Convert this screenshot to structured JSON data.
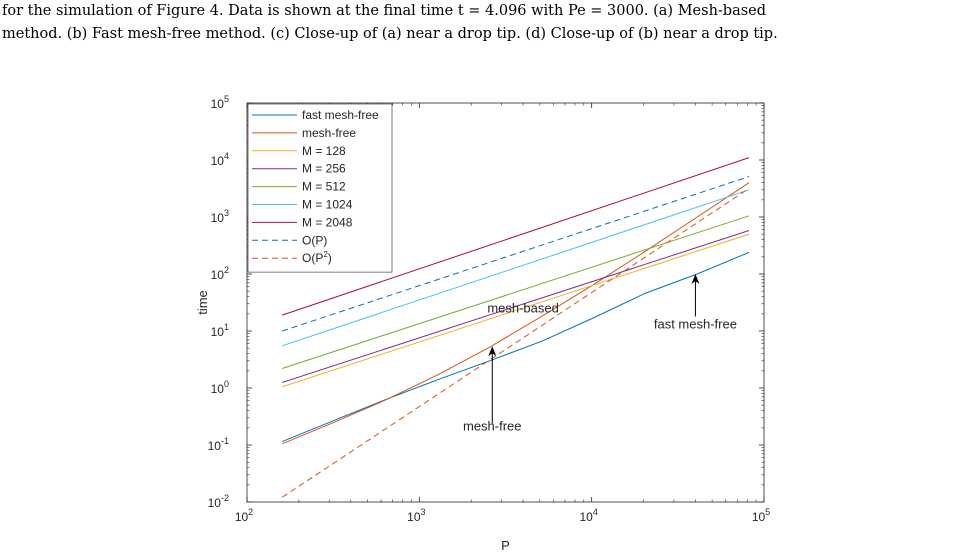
{
  "caption": {
    "line1": "for the simulation of Figure 4. Data is shown at the final time t = 4.096 with Pe = 3000. (a) Mesh-based",
    "line2": "method. (b) Fast mesh-free method. (c) Close-up of (a) near a drop tip. (d) Close-up of (b) near a drop tip."
  },
  "chart_data": {
    "type": "line",
    "title": "",
    "xlabel": "P",
    "ylabel": "time",
    "xscale": "log",
    "yscale": "log",
    "xlim": [
      100,
      100000
    ],
    "ylim": [
      0.01,
      100000
    ],
    "grid": false,
    "legend_position": "top-left",
    "xticks": [
      {
        "value": 100,
        "base": "10",
        "exp": "2"
      },
      {
        "value": 1000,
        "base": "10",
        "exp": "3"
      },
      {
        "value": 10000,
        "base": "10",
        "exp": "4"
      },
      {
        "value": 100000,
        "base": "10",
        "exp": "5"
      }
    ],
    "yticks": [
      {
        "value": 0.01,
        "base": "10",
        "exp": "-2"
      },
      {
        "value": 0.1,
        "base": "10",
        "exp": "-1"
      },
      {
        "value": 1,
        "base": "10",
        "exp": "0"
      },
      {
        "value": 10,
        "base": "10",
        "exp": "1"
      },
      {
        "value": 100,
        "base": "10",
        "exp": "2"
      },
      {
        "value": 1000,
        "base": "10",
        "exp": "3"
      },
      {
        "value": 10000,
        "base": "10",
        "exp": "4"
      },
      {
        "value": 100000,
        "base": "10",
        "exp": "5"
      }
    ],
    "series": [
      {
        "name": "fast mesh-free",
        "color": "#0072BD",
        "dash": "solid",
        "x": [
          160,
          320,
          640,
          1280,
          2560,
          5120,
          10240,
          20480,
          40960,
          81920
        ],
        "y": [
          0.115,
          0.27,
          0.63,
          1.4,
          3.0,
          6.6,
          17,
          46,
          100,
          240
        ]
      },
      {
        "name": "mesh-free",
        "color": "#D95319",
        "dash": "solid",
        "x": [
          160,
          320,
          640,
          1280,
          2560,
          5120,
          10240,
          20480,
          40960,
          81920
        ],
        "y": [
          0.105,
          0.25,
          0.62,
          1.7,
          5.2,
          18,
          65,
          250,
          1000,
          4000
        ]
      },
      {
        "name": "M = 128",
        "color": "#EDB120",
        "dash": "solid",
        "x": [
          160,
          81920
        ],
        "y": [
          1.05,
          500
        ]
      },
      {
        "name": "M = 256",
        "color": "#7E2F8E",
        "dash": "solid",
        "x": [
          160,
          81920
        ],
        "y": [
          1.25,
          580
        ]
      },
      {
        "name": "M = 512",
        "color": "#77AC30",
        "dash": "solid",
        "x": [
          160,
          81920
        ],
        "y": [
          2.2,
          1050
        ]
      },
      {
        "name": "M = 1024",
        "color": "#4DBEEE",
        "dash": "solid",
        "x": [
          160,
          81920
        ],
        "y": [
          5.5,
          3000
        ]
      },
      {
        "name": "M = 2048",
        "color": "#A2142F",
        "dash": "solid",
        "x": [
          160,
          81920
        ],
        "y": [
          19,
          11000
        ]
      },
      {
        "name": "O(P)",
        "color": "#0072BD",
        "dash": "dashed",
        "x": [
          160,
          81920
        ],
        "y": [
          10,
          5120
        ]
      },
      {
        "name": "O(P²)",
        "legend_base": "O(P",
        "legend_sup": "2",
        "legend_tail": ")",
        "color": "#D95319",
        "dash": "dashed",
        "x": [
          160,
          81920
        ],
        "y": [
          0.0121,
          3174
        ]
      }
    ],
    "annotations": [
      {
        "text": "mesh-based",
        "x": 4000,
        "y": 21,
        "arrow": false
      },
      {
        "text": "fast mesh-free",
        "x": 40000,
        "y": 11,
        "arrow": true,
        "arrow_from_y": 18,
        "arrow_to_y": 100
      },
      {
        "text": "mesh-free",
        "x": 2650,
        "y": 0.18,
        "arrow": true,
        "arrow_from_y": 0.24,
        "arrow_to_y": 5.4
      }
    ]
  }
}
